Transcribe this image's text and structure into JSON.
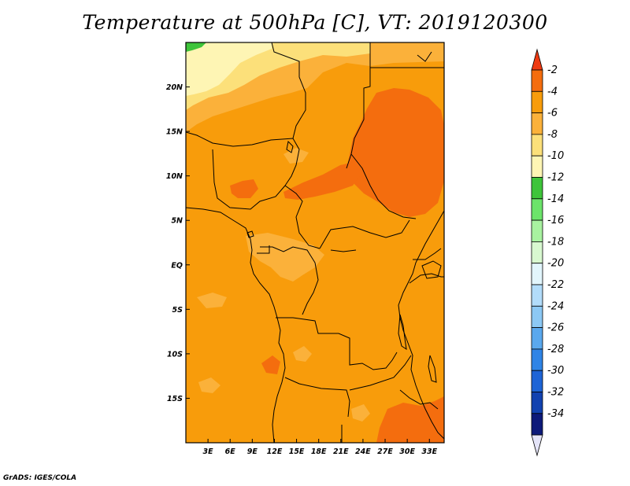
{
  "title": "Temperature at 500hPa [C], VT: 2019120300",
  "credit": "GrADS: IGES/COLA",
  "map": {
    "variable": "Temperature at 500hPa",
    "unit": "C",
    "valid_time": "2019120300",
    "lon_range": [
      0,
      35
    ],
    "lat_range": [
      -20,
      25
    ],
    "lon_ticks": [
      {
        "value": 3,
        "label": "3E"
      },
      {
        "value": 6,
        "label": "6E"
      },
      {
        "value": 9,
        "label": "9E"
      },
      {
        "value": 12,
        "label": "12E"
      },
      {
        "value": 15,
        "label": "15E"
      },
      {
        "value": 18,
        "label": "18E"
      },
      {
        "value": 21,
        "label": "21E"
      },
      {
        "value": 24,
        "label": "24E"
      },
      {
        "value": 27,
        "label": "27E"
      },
      {
        "value": 30,
        "label": "30E"
      },
      {
        "value": 33,
        "label": "33E"
      }
    ],
    "lat_ticks": [
      {
        "value": 20,
        "label": "20N"
      },
      {
        "value": 15,
        "label": "15N"
      },
      {
        "value": 10,
        "label": "10N"
      },
      {
        "value": 5,
        "label": "5N"
      },
      {
        "value": 0,
        "label": "EQ"
      },
      {
        "value": -5,
        "label": "5S"
      },
      {
        "value": -10,
        "label": "10S"
      },
      {
        "value": -15,
        "label": "15S"
      }
    ]
  },
  "colorbar": {
    "levels": [
      {
        "label": "-2",
        "color": "#f46d0e"
      },
      {
        "label": "-4",
        "color": "#f89c0b"
      },
      {
        "label": "-6",
        "color": "#fbb13a"
      },
      {
        "label": "-8",
        "color": "#fce07a"
      },
      {
        "label": "-10",
        "color": "#fef5b4"
      },
      {
        "label": "-12",
        "color": "#3ec43a"
      },
      {
        "label": "-14",
        "color": "#6ce46a"
      },
      {
        "label": "-16",
        "color": "#a8f2a0"
      },
      {
        "label": "-18",
        "color": "#d8f8d0"
      },
      {
        "label": "-20",
        "color": "#e2f5fc"
      },
      {
        "label": "-22",
        "color": "#b2dcfa"
      },
      {
        "label": "-24",
        "color": "#8cc8f4"
      },
      {
        "label": "-26",
        "color": "#5aa8ee"
      },
      {
        "label": "-28",
        "color": "#2f84e6"
      },
      {
        "label": "-30",
        "color": "#1e64d6"
      },
      {
        "label": "-32",
        "color": "#1242b0"
      },
      {
        "label": "-34",
        "color": "#0d1a7a"
      }
    ],
    "top_color": "#ee3a12",
    "bottom_color": "#e4e4f8"
  }
}
